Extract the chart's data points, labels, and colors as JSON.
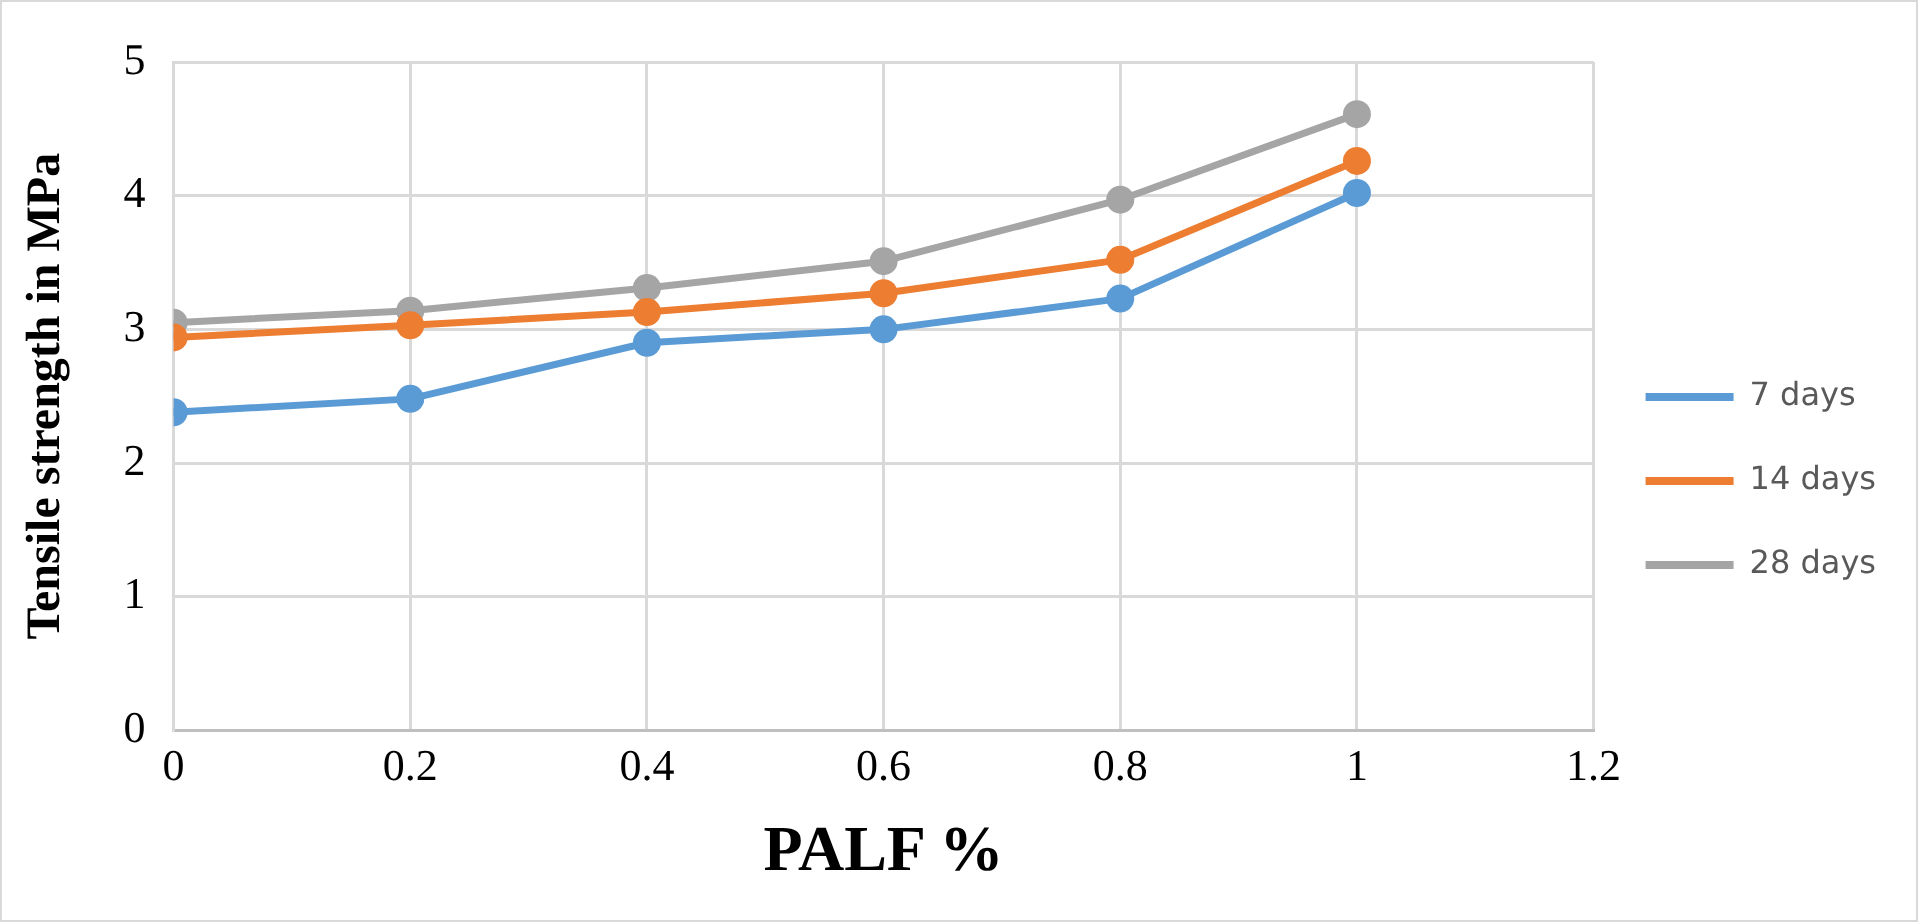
{
  "chart_data": {
    "type": "line",
    "xlabel": "PALF %",
    "ylabel": "Tensile strength in MPa",
    "x": [
      0,
      0.2,
      0.4,
      0.6,
      0.8,
      1
    ],
    "series": [
      {
        "name": "7 days",
        "color": "#5b9bd5",
        "values": [
          2.38,
          2.48,
          2.9,
          3.0,
          3.23,
          4.02
        ]
      },
      {
        "name": "14 days",
        "color": "#ed7d31",
        "values": [
          2.94,
          3.03,
          3.13,
          3.27,
          3.52,
          4.26
        ]
      },
      {
        "name": "28 days",
        "color": "#a5a5a5",
        "values": [
          3.05,
          3.14,
          3.31,
          3.51,
          3.97,
          4.61
        ]
      }
    ],
    "xlim": [
      0,
      1.2
    ],
    "xticks": [
      0,
      0.2,
      0.4,
      0.6,
      0.8,
      1,
      1.2
    ],
    "ylim": [
      0,
      5
    ],
    "yticks": [
      0,
      1,
      2,
      3,
      4,
      5
    ],
    "grid": true,
    "legend": "right",
    "marker": "circle",
    "line_style": "solid"
  }
}
